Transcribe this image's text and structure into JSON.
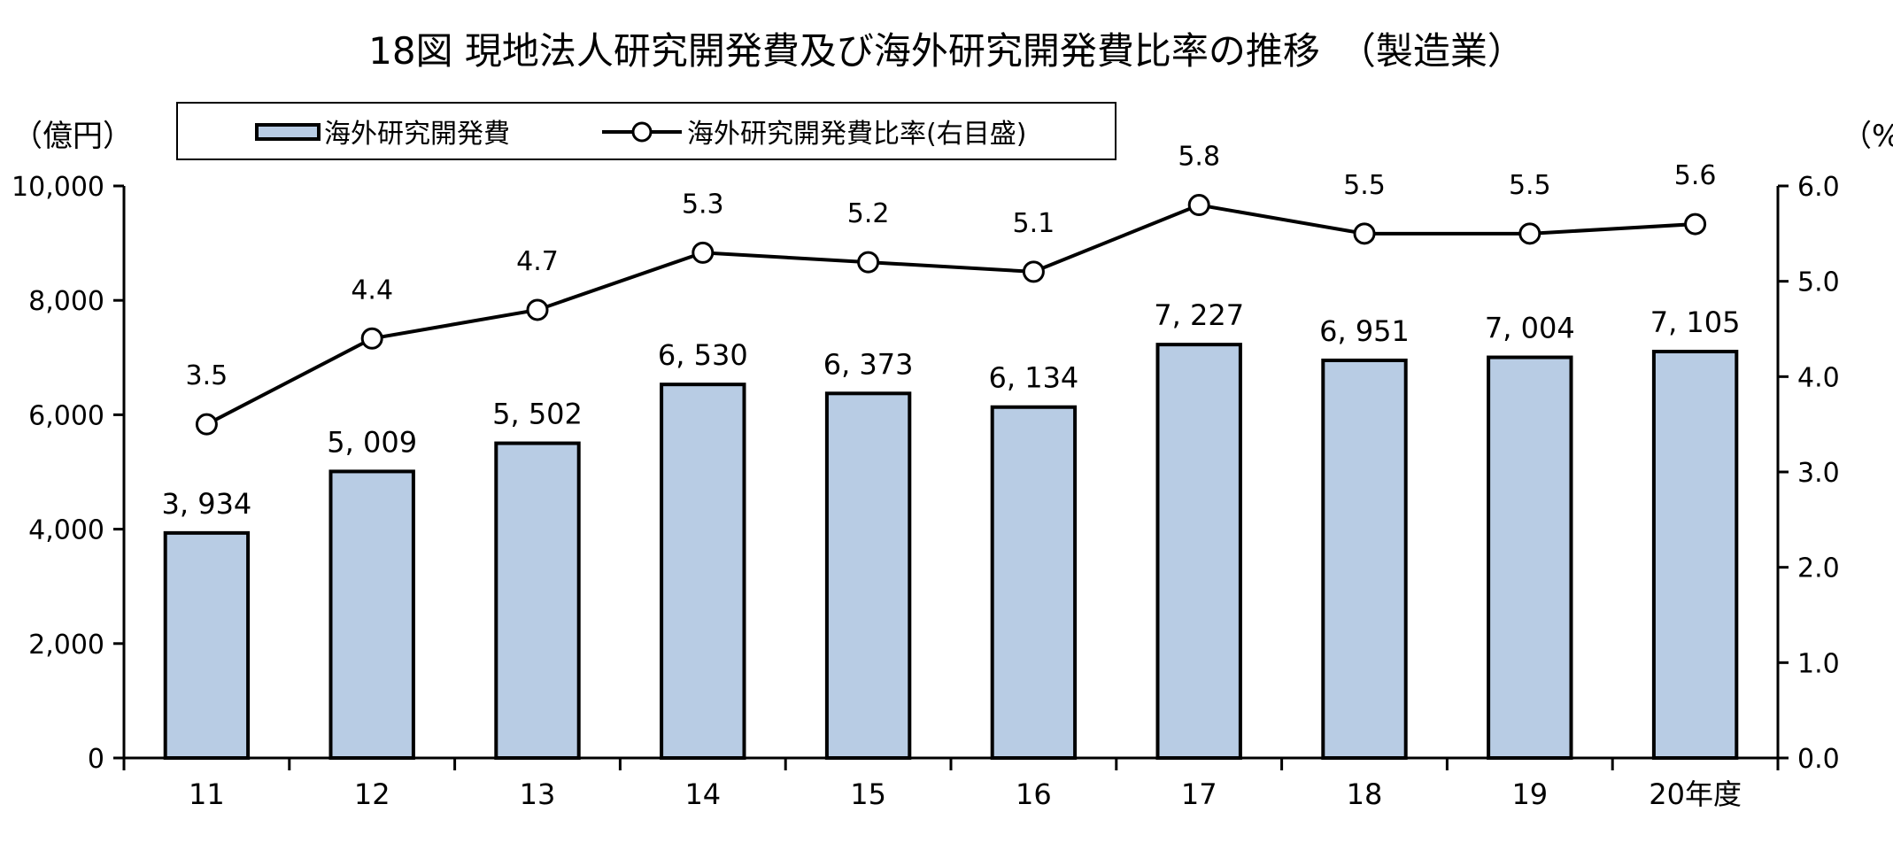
{
  "title": "18図  現地法人研究開発費及び海外研究開発費比率の推移　（製造業）",
  "left_unit": "（億円）",
  "right_unit": "（%）",
  "legend": {
    "bar_label": "海外研究開発費",
    "line_label": "海外研究開発費比率(右目盛)"
  },
  "colors": {
    "bar_fill": "#b8cce4",
    "bar_stroke": "#000000",
    "line": "#000000",
    "marker_fill": "#ffffff"
  },
  "chart_data": {
    "type": "bar",
    "categories": [
      "11",
      "12",
      "13",
      "14",
      "15",
      "16",
      "17",
      "18",
      "19",
      "20年度"
    ],
    "series": [
      {
        "name": "海外研究開発費",
        "type": "bar",
        "axis": "left",
        "values": [
          3934,
          5009,
          5502,
          6530,
          6373,
          6134,
          7227,
          6951,
          7004,
          7105
        ],
        "labels": [
          "3, 934",
          "5, 009",
          "5, 502",
          "6, 530",
          "6, 373",
          "6, 134",
          "7, 227",
          "6, 951",
          "7, 004",
          "7, 105"
        ]
      },
      {
        "name": "海外研究開発費比率(右目盛)",
        "type": "line",
        "axis": "right",
        "values": [
          3.5,
          4.4,
          4.7,
          5.3,
          5.2,
          5.1,
          5.8,
          5.5,
          5.5,
          5.6
        ],
        "labels": [
          "3.5",
          "4.4",
          "4.7",
          "5.3",
          "5.2",
          "5.1",
          "5.8",
          "5.5",
          "5.5",
          "5.6"
        ]
      }
    ],
    "y_left": {
      "ylim": [
        0,
        10000
      ],
      "ticks": [
        0,
        2000,
        4000,
        6000,
        8000,
        10000
      ],
      "tick_labels": [
        "0",
        "2,000",
        "4,000",
        "6,000",
        "8,000",
        "10,000"
      ]
    },
    "y_right": {
      "ylim": [
        0,
        6
      ],
      "ticks": [
        0,
        1,
        2,
        3,
        4,
        5,
        6
      ],
      "tick_labels": [
        "0.0",
        "1.0",
        "2.0",
        "3.0",
        "4.0",
        "5.0",
        "6.0"
      ]
    },
    "grid": false,
    "legend_position": "top"
  }
}
